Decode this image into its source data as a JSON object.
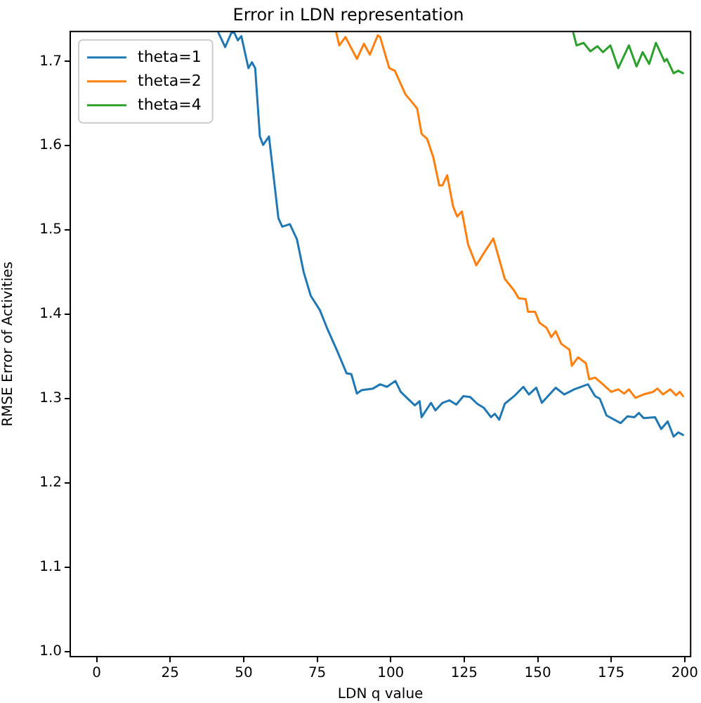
{
  "chart_data": {
    "type": "line",
    "title": "Error in LDN representation",
    "xlabel": "LDN q value",
    "ylabel": "RMSE Error of Activities",
    "xlim": [
      -9,
      202
    ],
    "ylim": [
      0.994,
      1.7355
    ],
    "xticks": [
      0,
      25,
      50,
      75,
      100,
      125,
      150,
      175,
      200
    ],
    "yticks": [
      {
        "value": 1,
        "label": "1.0"
      },
      1.1,
      1.2,
      1.3,
      1.4,
      1.5,
      1.6,
      1.7
    ],
    "grid": false,
    "legend": "top left",
    "marker": "none",
    "line_style": "solid",
    "series": [
      {
        "name": "theta=1",
        "color": "#1f77b4",
        "x": [
          41.4,
          43.7,
          45.8,
          46.8,
          48.0,
          49.2,
          51.6,
          52.8,
          53.9,
          55.5,
          56.6,
          58.6,
          61.8,
          63.1,
          65.7,
          68.1,
          70.4,
          72.8,
          75.9,
          78.3,
          81.5,
          85.0,
          86.6,
          88.5,
          90.1,
          94.0,
          96.4,
          98.7,
          101.6,
          103.4,
          105.8,
          108.2,
          109.8,
          110.5,
          113.7,
          115.2,
          117.6,
          120.0,
          122.3,
          124.7,
          127.0,
          129.4,
          131.7,
          134.1,
          135.4,
          136.9,
          138.8,
          142.0,
          145.1,
          147.0,
          149.5,
          151.4,
          156.1,
          159.0,
          162.4,
          167.1,
          169.5,
          171.1,
          173.4,
          178.2,
          180.5,
          182.9,
          184.4,
          186.0,
          189.9,
          192.0,
          194.2,
          196.2,
          197.8,
          199.4
        ],
        "values": [
          1.734,
          1.717,
          1.734,
          1.734,
          1.725,
          1.73,
          1.692,
          1.699,
          1.692,
          1.611,
          1.601,
          1.611,
          1.514,
          1.504,
          1.507,
          1.489,
          1.45,
          1.422,
          1.405,
          1.384,
          1.359,
          1.33,
          1.329,
          1.306,
          1.31,
          1.312,
          1.317,
          1.314,
          1.321,
          1.308,
          1.3,
          1.292,
          1.297,
          1.278,
          1.295,
          1.286,
          1.295,
          1.298,
          1.293,
          1.303,
          1.302,
          1.294,
          1.289,
          1.278,
          1.282,
          1.275,
          1.294,
          1.303,
          1.314,
          1.305,
          1.313,
          1.295,
          1.313,
          1.305,
          1.311,
          1.317,
          1.303,
          1.3,
          1.28,
          1.271,
          1.279,
          1.278,
          1.283,
          1.277,
          1.278,
          1.264,
          1.273,
          1.255,
          1.26,
          1.257
        ]
      },
      {
        "name": "theta=2",
        "color": "#ff7f0e",
        "x": [
          81.5,
          82.5,
          84.6,
          88.5,
          90.9,
          92.9,
          95.6,
          96.4,
          99.5,
          101.4,
          105.0,
          107.4,
          109.0,
          110.5,
          112.4,
          114.5,
          116.5,
          117.6,
          119.2,
          121.2,
          122.6,
          124.2,
          126.3,
          129.1,
          131.0,
          134.9,
          138.8,
          142.0,
          143.5,
          145.9,
          146.7,
          149.1,
          150.6,
          153.0,
          154.6,
          156.1,
          158.0,
          160.8,
          161.6,
          163.7,
          166.4,
          167.5,
          169.5,
          171.8,
          175.0,
          177.4,
          179.4,
          181.0,
          183.2,
          186.0,
          189.2,
          190.7,
          192.6,
          195.1,
          197.0,
          198.3,
          199.4
        ],
        "values": [
          1.734,
          1.719,
          1.729,
          1.703,
          1.721,
          1.708,
          1.731,
          1.729,
          1.692,
          1.689,
          1.661,
          1.651,
          1.644,
          1.614,
          1.608,
          1.586,
          1.553,
          1.553,
          1.565,
          1.528,
          1.516,
          1.522,
          1.483,
          1.458,
          1.469,
          1.49,
          1.442,
          1.428,
          1.419,
          1.418,
          1.403,
          1.403,
          1.39,
          1.384,
          1.373,
          1.38,
          1.365,
          1.358,
          1.339,
          1.349,
          1.342,
          1.323,
          1.325,
          1.318,
          1.308,
          1.311,
          1.306,
          1.311,
          1.301,
          1.305,
          1.308,
          1.312,
          1.305,
          1.311,
          1.304,
          1.308,
          1.303
        ]
      },
      {
        "name": "theta=4",
        "color": "#2ca02c",
        "x": [
          162.1,
          163.2,
          165.6,
          167.9,
          170.3,
          172.2,
          174.7,
          177.4,
          181.0,
          183.6,
          185.7,
          187.9,
          190.2,
          193.1,
          193.9,
          196.2,
          197.8,
          199.4
        ],
        "values": [
          1.734,
          1.719,
          1.722,
          1.712,
          1.718,
          1.711,
          1.719,
          1.692,
          1.719,
          1.694,
          1.711,
          1.697,
          1.722,
          1.7,
          1.703,
          1.686,
          1.689,
          1.686
        ]
      }
    ]
  }
}
